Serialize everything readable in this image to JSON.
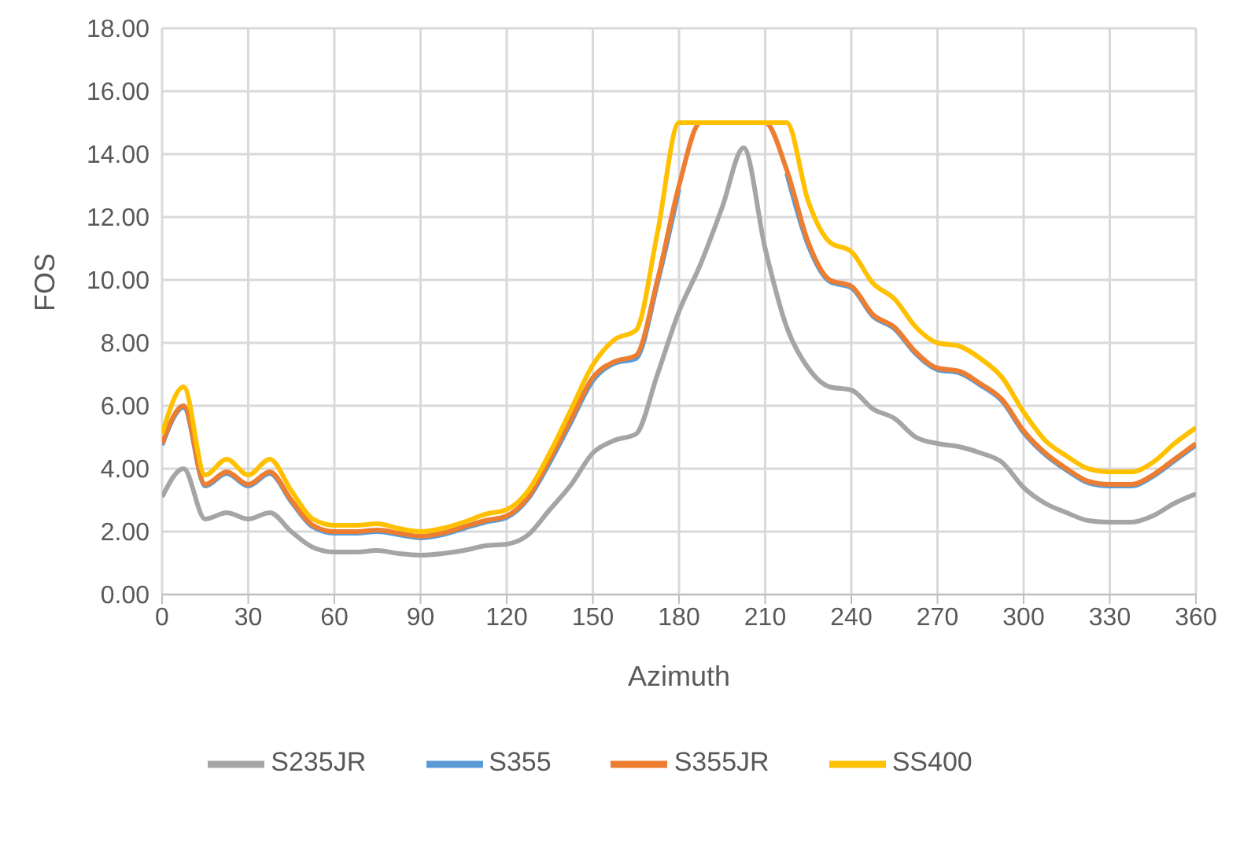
{
  "chart_data": {
    "type": "line",
    "xlabel": "Azimuth",
    "ylabel": "FOS",
    "x": [
      0,
      7.5,
      15,
      22.5,
      30,
      37.5,
      45,
      52.5,
      60,
      67.5,
      75,
      82.5,
      90,
      97.5,
      105,
      112.5,
      120,
      127.5,
      135,
      142.5,
      150,
      157.5,
      165,
      172.5,
      180,
      187.5,
      195,
      202.5,
      210,
      217.5,
      225,
      232.5,
      240,
      247.5,
      255,
      262.5,
      270,
      277.5,
      285,
      292.5,
      300,
      307.5,
      315,
      322.5,
      330,
      337.5,
      345,
      352.5,
      360
    ],
    "series": [
      {
        "name": "S355",
        "color": "#5b9bd5",
        "values": [
          4.75,
          5.95,
          3.45,
          3.85,
          3.45,
          3.85,
          2.95,
          2.15,
          1.95,
          1.95,
          2.0,
          1.9,
          1.8,
          1.9,
          2.1,
          2.3,
          2.45,
          3.05,
          4.2,
          5.5,
          6.8,
          7.35,
          7.5,
          9.9,
          12.9,
          null,
          null,
          null,
          null,
          13.4,
          11.1,
          9.95,
          9.75,
          8.85,
          8.45,
          7.65,
          7.15,
          7.05,
          6.65,
          6.15,
          5.15,
          4.45,
          3.95,
          3.55,
          3.45,
          3.45,
          3.75,
          4.25,
          4.75
        ]
      },
      {
        "name": "S355JR",
        "color": "#ed7d31",
        "values": [
          4.8,
          6.0,
          3.5,
          3.9,
          3.5,
          3.9,
          3.0,
          2.2,
          2.0,
          2.0,
          2.05,
          1.95,
          1.85,
          1.95,
          2.15,
          2.35,
          2.5,
          3.1,
          4.3,
          5.6,
          6.9,
          7.4,
          7.6,
          10.0,
          13.0,
          15.0,
          15.0,
          15.0,
          15.0,
          13.5,
          11.2,
          10.0,
          9.8,
          8.9,
          8.5,
          7.7,
          7.2,
          7.1,
          6.7,
          6.2,
          5.2,
          4.5,
          4.0,
          3.6,
          3.5,
          3.5,
          3.8,
          4.3,
          4.8
        ]
      },
      {
        "name": "S235JR",
        "color": "#a5a5a5",
        "values": [
          3.1,
          4.0,
          2.4,
          2.6,
          2.4,
          2.6,
          2.0,
          1.5,
          1.35,
          1.35,
          1.4,
          1.3,
          1.25,
          1.3,
          1.4,
          1.55,
          1.6,
          1.9,
          2.7,
          3.5,
          4.5,
          4.9,
          5.1,
          7.0,
          9.0,
          10.5,
          12.3,
          14.2,
          11.0,
          8.5,
          7.2,
          6.6,
          6.5,
          5.9,
          5.6,
          5.0,
          4.8,
          4.7,
          4.5,
          4.2,
          3.4,
          2.9,
          2.6,
          2.35,
          2.3,
          2.3,
          2.5,
          2.9,
          3.2
        ]
      },
      {
        "name": "SS400",
        "color": "#ffc000",
        "values": [
          5.1,
          6.6,
          3.8,
          4.3,
          3.8,
          4.3,
          3.3,
          2.4,
          2.2,
          2.2,
          2.25,
          2.1,
          2.0,
          2.1,
          2.3,
          2.55,
          2.7,
          3.3,
          4.5,
          5.9,
          7.3,
          8.1,
          8.4,
          11.5,
          15.0,
          15.0,
          15.0,
          15.0,
          15.0,
          15.0,
          12.5,
          11.2,
          10.9,
          9.9,
          9.4,
          8.5,
          8.0,
          7.9,
          7.5,
          6.9,
          5.8,
          4.9,
          4.4,
          4.0,
          3.9,
          3.9,
          4.2,
          4.8,
          5.3
        ]
      }
    ],
    "xlim": [
      0,
      360
    ],
    "xticks": [
      0,
      30,
      60,
      90,
      120,
      150,
      180,
      210,
      240,
      270,
      300,
      330,
      360
    ],
    "ylim": [
      0,
      18
    ],
    "yticks": [
      {
        "value": 0,
        "label": "0.00"
      },
      {
        "value": 2,
        "label": "2.00"
      },
      {
        "value": 4,
        "label": "4.00"
      },
      {
        "value": 6,
        "label": "6.00"
      },
      {
        "value": 8,
        "label": "8.00"
      },
      {
        "value": 10,
        "label": "10.00"
      },
      {
        "value": 12,
        "label": "12.00"
      },
      {
        "value": 14,
        "label": "14.00"
      },
      {
        "value": 16,
        "label": "16.00"
      },
      {
        "value": 18,
        "label": "18.00"
      }
    ],
    "grid": true,
    "legend": "bottom",
    "marker": "none",
    "line_style": "solid"
  }
}
